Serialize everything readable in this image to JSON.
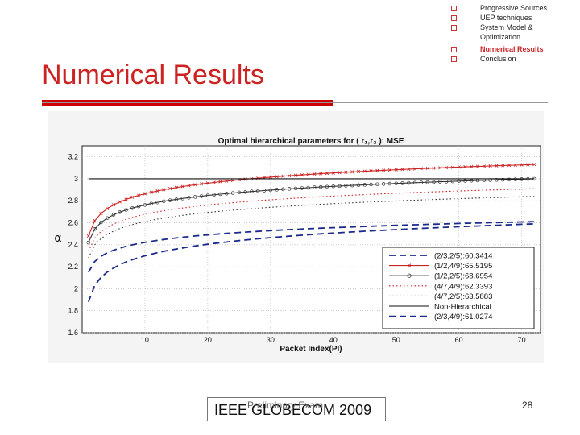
{
  "slide": {
    "title": "Numerical Results",
    "nav_items": [
      {
        "label": "Progressive Sources",
        "active": false
      },
      {
        "label": "UEP techniques",
        "active": false
      },
      {
        "label": "System Model & Optimization",
        "active": false
      },
      {
        "label": "Numerical Results",
        "active": true
      },
      {
        "label": "Conclusion",
        "active": false
      }
    ],
    "footer_text": "IEEE GLOBECOM 2009",
    "footer_overlay": "Preliminary Exam",
    "page_number": "28"
  },
  "chart_data": {
    "type": "line",
    "title": "Optimal hierarchical parameters for ( r₁,r₂ ): MSE",
    "xlabel": "Packet Index(PI)",
    "ylabel": "α",
    "xlim": [
      0,
      73
    ],
    "ylim": [
      1.6,
      3.3
    ],
    "xticks": [
      "10",
      "20",
      "30",
      "40",
      "50",
      "60",
      "70"
    ],
    "yticks": [
      "1.6",
      "1.8",
      "2",
      "2.2",
      "2.4",
      "2.6",
      "2.8",
      "3",
      "3.2"
    ],
    "grid": true,
    "legend_position": "bottom-right",
    "series": [
      {
        "name": "(2/3,2/5):60.3414",
        "color": "#1a2a8c",
        "dash": "8,5",
        "marker": "none",
        "start": 2.15,
        "end": 2.61
      },
      {
        "name": "(1/2,4/9):65.5195",
        "color": "#cc2222",
        "dash": "",
        "marker": "x",
        "start": 2.48,
        "end": 3.13
      },
      {
        "name": "(1/2,2/5):68.6954",
        "color": "#333333",
        "dash": "",
        "marker": "o",
        "start": 2.42,
        "end": 3.0
      },
      {
        "name": "(4/7,4/9):62.3393",
        "color": "#cc2222",
        "dash": "1.5,3",
        "marker": "none",
        "start": 2.34,
        "end": 2.91
      },
      {
        "name": "(4/7,2/5):63.5883",
        "color": "#333333",
        "dash": "1.5,3",
        "marker": "none",
        "start": 2.28,
        "end": 2.84
      },
      {
        "name": "Non-Hierarchical",
        "color": "#111111",
        "dash": "",
        "marker": "none",
        "start": 3.0,
        "end": 3.0
      },
      {
        "name": "(2/3,4/9):61.0274",
        "color": "#1a2a8c",
        "dash": "8,5",
        "marker": "none",
        "start": 1.88,
        "end": 2.59
      }
    ]
  }
}
